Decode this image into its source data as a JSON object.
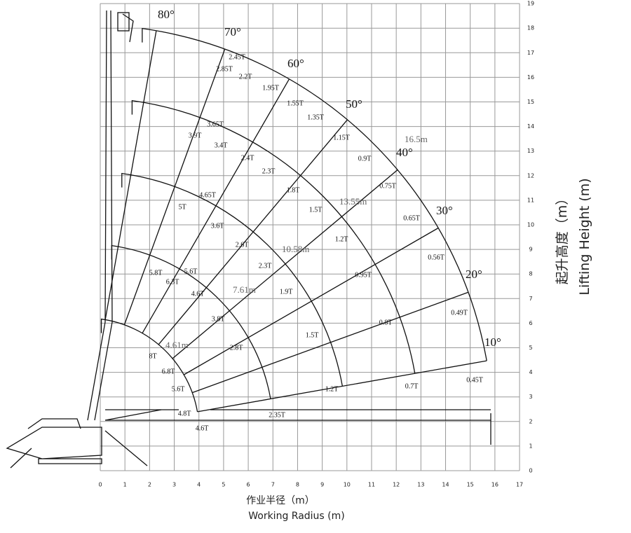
{
  "axis": {
    "x_ticks": [
      "0",
      "1",
      "2",
      "3",
      "4",
      "5",
      "6",
      "7",
      "8",
      "9",
      "10",
      "11",
      "12",
      "13",
      "14",
      "15",
      "16",
      "17"
    ],
    "y_ticks": [
      "0",
      "1",
      "2",
      "3",
      "4",
      "5",
      "6",
      "7",
      "8",
      "9",
      "10",
      "11",
      "12",
      "13",
      "14",
      "15",
      "16",
      "17",
      "18",
      "19"
    ],
    "x_title_cn": "作业半径（m）",
    "x_title_en": "Working Radius (m)",
    "y_title_cn": "起升高度（m）",
    "y_title_en": "Lifting Height (m)"
  },
  "angles": [
    "80°",
    "70°",
    "60°",
    "50°",
    "40°",
    "30°",
    "20°",
    "10°"
  ],
  "booms": [
    "4.61m",
    "7.61m",
    "10.58m",
    "13.55m",
    "16.5m"
  ],
  "loads": [
    "2.45T",
    "2.85T",
    "2.2T",
    "1.95T",
    "1.55T",
    "1.35T",
    "1.15T",
    "0.9T",
    "0.75T",
    "0.65T",
    "0.56T",
    "0.49T",
    "0.45T",
    "3.65T",
    "3.9T",
    "3.4T",
    "2.4T",
    "2.3T",
    "1.8T",
    "1.5T",
    "1.2T",
    "0.95T",
    "0.8T",
    "0.7T",
    "4.65T",
    "5T",
    "3.6T",
    "2.6T",
    "2.3T",
    "1.9T",
    "1.5T",
    "1.2T",
    "5.8T",
    "6.3T",
    "5.6T",
    "4.6T",
    "3.8T",
    "2.8T",
    "2.35T",
    "8T",
    "6.8T",
    "5.6T",
    "4.8T",
    "4.6T"
  ]
}
